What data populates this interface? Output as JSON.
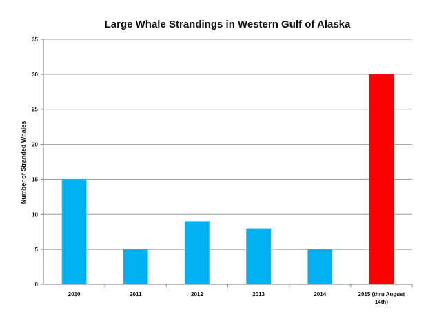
{
  "chart_data": {
    "type": "bar",
    "title": "Large Whale Strandings in Western Gulf of Alaska",
    "xlabel": "",
    "ylabel": "Number of Stranded Whales",
    "categories": [
      "2010",
      "2011",
      "2012",
      "2013",
      "2014",
      "2015 (thru August 14th)"
    ],
    "category_lines": [
      [
        "2010"
      ],
      [
        "2011"
      ],
      [
        "2012"
      ],
      [
        "2013"
      ],
      [
        "2014"
      ],
      [
        "2015 (thru August",
        "14th)"
      ]
    ],
    "values": [
      15,
      5,
      9,
      8,
      5,
      30
    ],
    "colors": [
      "#00b0f0",
      "#00b0f0",
      "#00b0f0",
      "#00b0f0",
      "#00b0f0",
      "#ff0000"
    ],
    "ylim": [
      0,
      35
    ],
    "yticks": [
      0,
      5,
      10,
      15,
      20,
      25,
      30,
      35
    ],
    "grid": true,
    "legend": "none"
  }
}
